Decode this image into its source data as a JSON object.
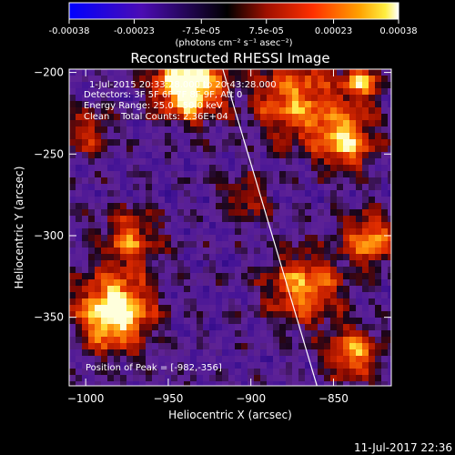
{
  "colorbar": {
    "ticks": [
      "-0.00038",
      "-0.00023",
      "-7.5e-05",
      "7.5e-05",
      "0.00023",
      "0.00038"
    ],
    "tick_values": [
      -0.00038,
      -0.00023,
      -7.5e-05,
      7.5e-05,
      0.00023,
      0.00038
    ],
    "range": [
      -0.00038,
      0.00038
    ],
    "units": "(photons cm⁻² s⁻¹ asec⁻²)",
    "colors": [
      "#0000ff",
      "#5a0aa0",
      "#000000",
      "#8a0a00",
      "#ff2a00",
      "#ff9a00",
      "#ffee30",
      "#ffffff"
    ]
  },
  "info": {
    "time": "1-Jul-2015 20:33:28.000 to 20:43:28.000",
    "detectors": "Detectors: 3F 5F 6F 7F 8F 9F, Att 0",
    "energy": "Energy Range: 25.0 - 50.0 keV",
    "clean": "Clean    Total Counts: 2.36E+04",
    "peak": "Position of Peak = [-982,-356]"
  },
  "footer_date": "11-Jul-2017 22:36",
  "chart_data": {
    "type": "heatmap",
    "title": "Reconstructed RHESSI Image",
    "xlabel": "Heliocentric X (arcsec)",
    "ylabel": "Heliocentric Y (arcsec)",
    "xlim": [
      -1010,
      -815
    ],
    "ylim": [
      -392,
      -198
    ],
    "xticks": [
      -1000,
      -950,
      -900,
      -850
    ],
    "xtick_labels": [
      "−1000",
      "−950",
      "−900",
      "−850"
    ],
    "yticks": [
      -200,
      -250,
      -300,
      -350
    ],
    "ytick_labels": [
      "−200",
      "−250",
      "−300",
      "−350"
    ],
    "limb_line": [
      [
        -917,
        -198
      ],
      [
        -860,
        -392
      ]
    ],
    "peak_position": [
      -982,
      -356
    ],
    "grid": false,
    "legend": "colorbar top"
  }
}
